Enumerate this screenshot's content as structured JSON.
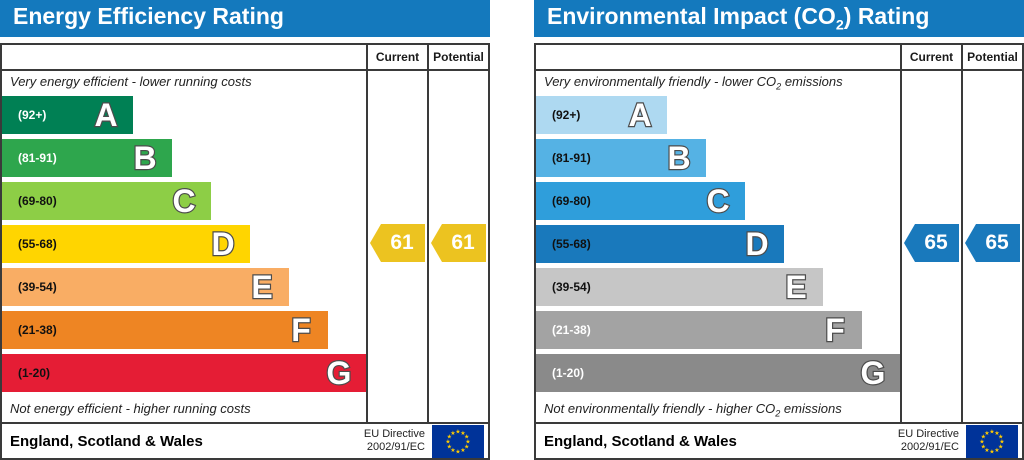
{
  "chart_data": [
    {
      "type": "bar",
      "id": "energy-efficiency",
      "title": {
        "prefix": "Energy Efficiency Rating",
        "sub": "",
        "suffix": ""
      },
      "header_color": "#1479bd",
      "column_headers": {
        "current": "Current",
        "potential": "Potential"
      },
      "top_caption": {
        "prefix": "Very energy efficient - lower running costs",
        "sub": "",
        "suffix": ""
      },
      "bottom_caption": {
        "prefix": "Not energy efficient - higher running costs",
        "sub": "",
        "suffix": ""
      },
      "bands": [
        {
          "letter": "A",
          "range": "(92+)",
          "color": "#008054",
          "label_color": "#ffffff",
          "width_pct": 36
        },
        {
          "letter": "B",
          "range": "(81-91)",
          "color": "#2ea64d",
          "label_color": "#ffffff",
          "width_pct": 46.7
        },
        {
          "letter": "C",
          "range": "(69-80)",
          "color": "#8dce46",
          "label_color": "#111111",
          "width_pct": 57.4
        },
        {
          "letter": "D",
          "range": "(55-68)",
          "color": "#ffd500",
          "label_color": "#111111",
          "width_pct": 68.1
        },
        {
          "letter": "E",
          "range": "(39-54)",
          "color": "#f9ad64",
          "label_color": "#111111",
          "width_pct": 78.8
        },
        {
          "letter": "F",
          "range": "(21-38)",
          "color": "#ee8523",
          "label_color": "#111111",
          "width_pct": 89.6
        },
        {
          "letter": "G",
          "range": "(1-20)",
          "color": "#e51d35",
          "label_color": "#111111",
          "width_pct": 100
        }
      ],
      "ratings": {
        "current": {
          "value": 61,
          "band": "D",
          "band_index": 3,
          "color": "#ecc320"
        },
        "potential": {
          "value": 61,
          "band": "D",
          "band_index": 3,
          "color": "#ecc320"
        }
      },
      "footer": {
        "region": "England, Scotland & Wales",
        "directive_line1": "EU Directive",
        "directive_line2": "2002/91/EC"
      }
    },
    {
      "type": "bar",
      "id": "environmental-impact-co2",
      "title": {
        "prefix": "Environmental Impact (CO",
        "sub": "2",
        "suffix": ") Rating"
      },
      "header_color": "#1479bd",
      "column_headers": {
        "current": "Current",
        "potential": "Potential"
      },
      "top_caption": {
        "prefix": "Very environmentally friendly - lower CO",
        "sub": "2",
        "suffix": " emissions"
      },
      "bottom_caption": {
        "prefix": "Not environmentally friendly - higher CO",
        "sub": "2",
        "suffix": " emissions"
      },
      "bands": [
        {
          "letter": "A",
          "range": "(92+)",
          "color": "#aed9f1",
          "label_color": "#111111",
          "width_pct": 36
        },
        {
          "letter": "B",
          "range": "(81-91)",
          "color": "#55b2e4",
          "label_color": "#111111",
          "width_pct": 46.7
        },
        {
          "letter": "C",
          "range": "(69-80)",
          "color": "#2f9edb",
          "label_color": "#111111",
          "width_pct": 57.4
        },
        {
          "letter": "D",
          "range": "(55-68)",
          "color": "#1979bc",
          "label_color": "#111111",
          "width_pct": 68.1
        },
        {
          "letter": "E",
          "range": "(39-54)",
          "color": "#c6c6c6",
          "label_color": "#111111",
          "width_pct": 78.8
        },
        {
          "letter": "F",
          "range": "(21-38)",
          "color": "#a3a3a3",
          "label_color": "#ffffff",
          "width_pct": 89.6
        },
        {
          "letter": "G",
          "range": "(1-20)",
          "color": "#8a8a8a",
          "label_color": "#ffffff",
          "width_pct": 100
        }
      ],
      "ratings": {
        "current": {
          "value": 65,
          "band": "D",
          "band_index": 3,
          "color": "#1979bc"
        },
        "potential": {
          "value": 65,
          "band": "D",
          "band_index": 3,
          "color": "#1979bc"
        }
      },
      "footer": {
        "region": "England, Scotland & Wales",
        "directive_line1": "EU Directive",
        "directive_line2": "2002/91/EC"
      }
    }
  ],
  "flag": {
    "background": "#003399",
    "star_color": "#ffcc00"
  }
}
